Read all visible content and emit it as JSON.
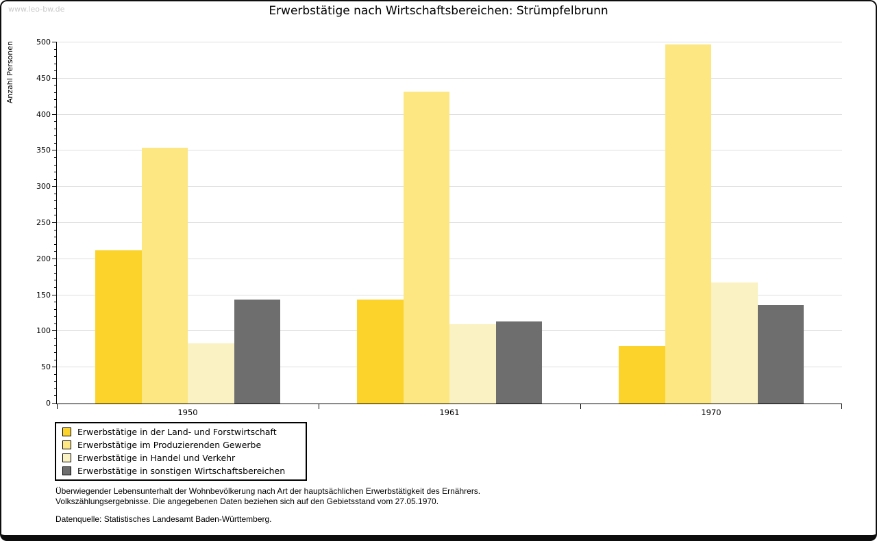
{
  "watermark": "www.leo-bw.de",
  "chart_data": {
    "type": "bar",
    "title": "Erwerbstätige nach Wirtschaftsbereichen: Strümpfelbrunn",
    "ylabel": "Anzahl Personen",
    "xlabel": "",
    "categories": [
      "1950",
      "1961",
      "1970"
    ],
    "series": [
      {
        "name": "Erwerbstätige in der Land- und Forstwirtschaft",
        "color": "#FBD32B",
        "values": [
          212,
          144,
          80
        ]
      },
      {
        "name": "Erwerbstätige im Produzierenden Gewerbe",
        "color": "#FCE782",
        "values": [
          354,
          432,
          497
        ]
      },
      {
        "name": "Erwerbstätige in Handel und Verkehr",
        "color": "#FBF2C3",
        "values": [
          83,
          110,
          168
        ]
      },
      {
        "name": "Erwerbstätige in sonstigen Wirtschaftsbereichen",
        "color": "#6E6E6E",
        "values": [
          144,
          114,
          136
        ]
      }
    ],
    "ylim": [
      0,
      500
    ],
    "ytick_step": 50,
    "y_minor_step": 10,
    "grid": true,
    "grid_color": "#DDDDDD",
    "axis_color": "#000000",
    "legend_position": "bottom-left"
  },
  "footer": {
    "note_line1": "Überwiegender Lebensunterhalt der Wohnbevölkerung nach Art der hauptsächlichen Erwerbstätigkeit des Ernährers.",
    "note_line2": "Volkszählungsergebnisse. Die angegebenen Daten beziehen sich auf den Gebietsstand vom 27.05.1970.",
    "source": "Datenquelle: Statistisches Landesamt Baden-Württemberg."
  }
}
